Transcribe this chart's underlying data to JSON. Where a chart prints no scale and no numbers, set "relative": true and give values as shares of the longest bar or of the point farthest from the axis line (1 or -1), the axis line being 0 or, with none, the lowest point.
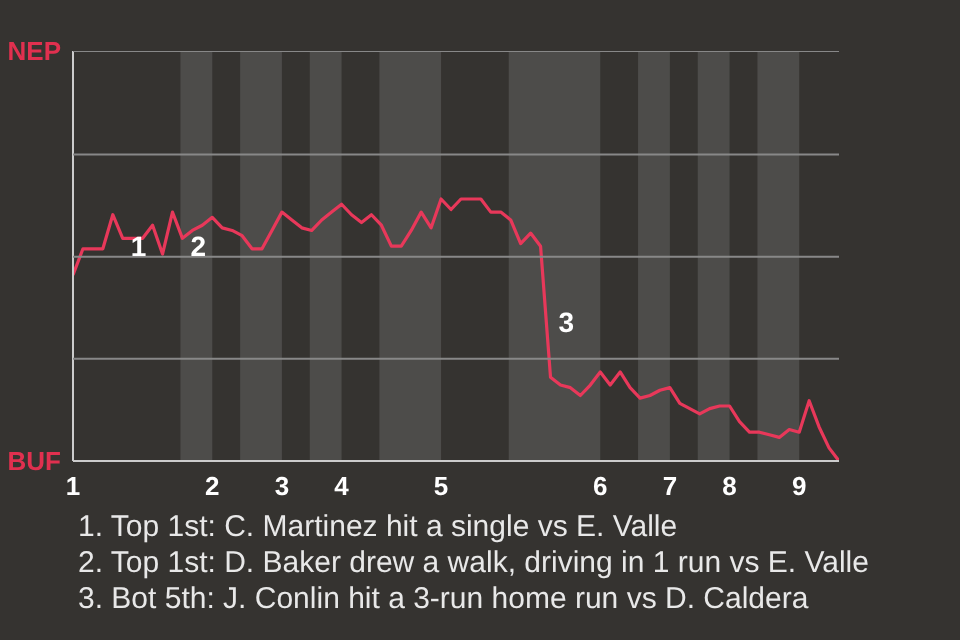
{
  "chart_data": {
    "type": "line",
    "relative": true,
    "ref_lines": [
      {
        "axis": "y",
        "value": 0.39,
        "color": "#888888"
      },
      {
        "axis": "y",
        "value": 0.78,
        "color": "#888888"
      },
      {
        "axis": "y",
        "value": 1.17,
        "color": "#888888"
      },
      {
        "axis": "y",
        "value": 1.565,
        "color": "#888888"
      }
    ],
    "categories": [
      "1",
      null,
      null,
      null,
      null,
      null,
      null,
      null,
      null,
      null,
      null,
      null,
      null,
      null,
      "2",
      null,
      null,
      null,
      null,
      null,
      null,
      "3",
      null,
      null,
      null,
      null,
      null,
      "4",
      null,
      null,
      null,
      null,
      null,
      null,
      null,
      null,
      null,
      "5",
      null,
      null,
      null,
      null,
      null,
      null,
      null,
      null,
      null,
      null,
      null,
      null,
      null,
      null,
      null,
      "6",
      null,
      null,
      null,
      null,
      null,
      null,
      "7",
      null,
      null,
      null,
      null,
      null,
      "8",
      null,
      null,
      null,
      null,
      null,
      null,
      "9",
      null,
      null,
      null,
      null
    ],
    "series": [
      {
        "color": "#e8385a",
        "values": [
          0.71,
          0.81,
          0.81,
          0.81,
          0.94,
          0.85,
          0.85,
          0.85,
          0.9,
          0.79,
          0.95,
          0.85,
          0.88,
          0.9,
          0.93,
          0.89,
          0.88,
          0.86,
          0.81,
          0.81,
          0.88,
          0.95,
          0.92,
          0.89,
          0.88,
          0.92,
          0.95,
          0.98,
          0.94,
          0.91,
          0.94,
          0.9,
          0.82,
          0.82,
          0.88,
          0.95,
          0.89,
          1,
          0.96,
          1,
          1,
          1,
          0.95,
          0.95,
          0.92,
          0.83,
          0.87,
          0.82,
          0.32,
          0.29,
          0.28,
          0.25,
          0.29,
          0.34,
          0.29,
          0.34,
          0.28,
          0.24,
          0.25,
          0.27,
          0.28,
          0.22,
          0.2,
          0.18,
          0.2,
          0.21,
          0.21,
          0.15,
          0.11,
          0.11,
          0.1,
          0.09,
          0.12,
          0.11,
          0.23,
          0.13,
          0.05,
          0
        ]
      }
    ],
    "annotations": [
      "NEP",
      "BUF",
      "1",
      "2",
      "3",
      "1. Top 1st: C. Martinez hit a single vs E. Valle",
      "2. Top 1st: D. Baker drew a walk, driving in 1 run vs E. Valle",
      "3. Bot 5th: J. Conlin hit a 3-run home run vs D. Caldera"
    ]
  }
}
